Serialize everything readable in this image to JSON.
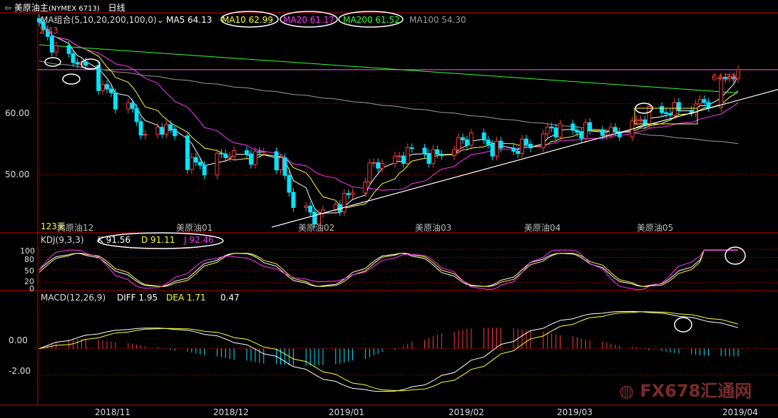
{
  "toolbar": {
    "back_icon": "back-arrow-icon",
    "title": "美原油主",
    "symbol": "(NYMEX 6713)",
    "period": "日线",
    "dropdown_icon": "chevron-down-icon"
  },
  "colors": {
    "up": "#ff3b3b",
    "down": "#00e5ff",
    "ma5": "#ffffff",
    "ma10": "#ffff33",
    "ma20": "#ff33ff",
    "ma200": "#33ff33",
    "ma100": "#9a9a9a",
    "grid": "#8b0000",
    "axis": "#cc0000"
  },
  "price_panel": {
    "legend_prefix": "MA组合(5,10,20,200,100,0)",
    "ma": [
      {
        "label": "MA5 64.13",
        "color": "#ffffff"
      },
      {
        "label": "MA10 62.99",
        "color": "#ffff33"
      },
      {
        "label": "MA20 61.17",
        "color": "#ff33ff"
      },
      {
        "label": "MA200 61.52",
        "color": "#33ff33"
      },
      {
        "label": "MA100 54.30",
        "color": "#9a9a9a"
      }
    ],
    "high_label": "2.43",
    "last_label": "64.79",
    "day_count": "123天",
    "y_ticks": [
      "60.00",
      "50.00"
    ]
  },
  "kdj_panel": {
    "legend_prefix": "KDJ(9,3,3)",
    "k": "K 91.56",
    "d": "D 91.11",
    "j": "J 92.46",
    "y_ticks": [
      "100",
      "80",
      "50",
      "20",
      "0"
    ]
  },
  "macd_panel": {
    "legend_prefix": "MACD(12,26,9)",
    "diff": "DIFF 1.95",
    "dea": "DEA 1.71",
    "hist": "0.47",
    "y_ticks": [
      "0.00",
      "-2.00"
    ]
  },
  "contract_labels": [
    "美原油12",
    "美原油01",
    "美原油02",
    "美原油03",
    "美原油04",
    "美原油05"
  ],
  "x_axis": [
    "2018/11",
    "2018/12",
    "2019/01",
    "2019/02",
    "2019/03",
    "2019/04"
  ],
  "watermark": "FX678汇通网",
  "chart_data": {
    "type": "candlestick",
    "title": "美原油主 (NYMEX 6713) 日线",
    "xlabel": "",
    "ylabel": "",
    "ylim": [
      42.0,
      71.0
    ],
    "x_range": [
      "2018-10-22",
      "2019-04-05"
    ],
    "price_anchors": [
      [
        "2018-10-22",
        71.0
      ],
      [
        "2018-10-26",
        67.5
      ],
      [
        "2018-10-31",
        66.0
      ],
      [
        "2018-11-05",
        63.0
      ],
      [
        "2018-11-09",
        60.5
      ],
      [
        "2018-11-13",
        59.0
      ],
      [
        "2018-11-16",
        55.0
      ],
      [
        "2018-11-21",
        57.0
      ],
      [
        "2018-11-26",
        52.0
      ],
      [
        "2018-11-30",
        51.0
      ],
      [
        "2018-12-05",
        53.0
      ],
      [
        "2018-12-10",
        52.5
      ],
      [
        "2018-12-14",
        53.0
      ],
      [
        "2018-12-18",
        51.5
      ],
      [
        "2018-12-21",
        46.0
      ],
      [
        "2018-12-26",
        44.0
      ],
      [
        "2018-12-31",
        45.5
      ],
      [
        "2019-01-04",
        47.5
      ],
      [
        "2019-01-09",
        51.5
      ],
      [
        "2019-01-14",
        52.0
      ],
      [
        "2019-01-18",
        53.5
      ],
      [
        "2019-01-23",
        52.5
      ],
      [
        "2019-01-28",
        54.0
      ],
      [
        "2019-02-01",
        55.5
      ],
      [
        "2019-02-06",
        53.8
      ],
      [
        "2019-02-11",
        53.5
      ],
      [
        "2019-02-15",
        54.5
      ],
      [
        "2019-02-20",
        56.5
      ],
      [
        "2019-02-26",
        56.0
      ],
      [
        "2019-03-01",
        56.3
      ],
      [
        "2019-03-06",
        55.8
      ],
      [
        "2019-03-11",
        57.0
      ],
      [
        "2019-03-15",
        58.5
      ],
      [
        "2019-03-20",
        59.0
      ],
      [
        "2019-03-25",
        59.5
      ],
      [
        "2019-03-29",
        60.5
      ],
      [
        "2019-04-02",
        63.5
      ],
      [
        "2019-04-05",
        64.79
      ]
    ],
    "ma_last": {
      "MA5": 64.13,
      "MA10": 62.99,
      "MA20": 61.17,
      "MA200": 61.52,
      "MA100": 54.3
    },
    "kdj_last": {
      "K": 91.56,
      "D": 91.11,
      "J": 92.46
    },
    "kdj_ylim": [
      0,
      100
    ],
    "macd_last": {
      "DIFF": 1.95,
      "DEA": 1.71,
      "MACD": 0.47
    },
    "macd_ylim": [
      -4.2,
      3.4
    ],
    "trendline": [
      [
        "2018-12-26",
        43.0
      ],
      [
        "2019-04-05",
        60.2
      ]
    ]
  }
}
